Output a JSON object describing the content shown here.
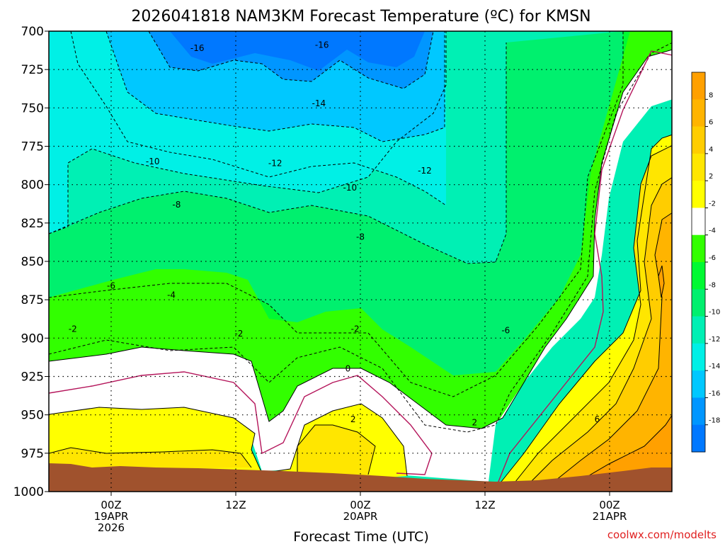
{
  "chart_data": {
    "type": "heatmap",
    "title": "2026041818 NAM3KM Forecast Temperature (ºC) for KMSN",
    "xlabel": "Forecast Time (UTC)",
    "ylabel": "",
    "y_ticks": [
      "700",
      "725",
      "750",
      "775",
      "800",
      "825",
      "850",
      "875",
      "900",
      "925",
      "950",
      "975",
      "1000"
    ],
    "x_ticks": [
      {
        "hour": 6,
        "lines": [
          "00Z",
          "19APR",
          "2026"
        ]
      },
      {
        "hour": 18,
        "lines": [
          "12Z",
          "",
          ""
        ]
      },
      {
        "hour": 30,
        "lines": [
          "00Z",
          "20APR",
          ""
        ]
      },
      {
        "hour": 42,
        "lines": [
          "12Z",
          "",
          ""
        ]
      },
      {
        "hour": 54,
        "lines": [
          "00Z",
          "21APR",
          ""
        ]
      }
    ],
    "x_range_hours": [
      0,
      60
    ],
    "y_range_hpa": [
      700,
      1000
    ],
    "credit": "coolwx.com/modelts",
    "colorbar": {
      "labels": [
        "8",
        "6",
        "4",
        "2",
        "-2",
        "-4",
        "-6",
        "-8",
        "-10",
        "-12",
        "-14",
        "-16",
        "-18"
      ],
      "colors": [
        "#ffa000",
        "#ffb400",
        "#ffcd00",
        "#ffe600",
        "#ffff00",
        "#ffffff",
        "#32ff00",
        "#00fa32",
        "#00f06e",
        "#00f0b4",
        "#00f0e6",
        "#00c8ff",
        "#0096ff",
        "#0078ff"
      ]
    },
    "contour_labels": [
      {
        "text": "-16",
        "hour": 14.3,
        "hpa": 711
      },
      {
        "text": "-16",
        "hour": 26.3,
        "hpa": 709
      },
      {
        "text": "-14",
        "hour": 26.0,
        "hpa": 747
      },
      {
        "text": "-12",
        "hour": 21.8,
        "hpa": 786
      },
      {
        "text": "-12",
        "hour": 36.2,
        "hpa": 791
      },
      {
        "text": "-10",
        "hour": 10.0,
        "hpa": 785
      },
      {
        "text": "-10",
        "hour": 29.0,
        "hpa": 802
      },
      {
        "text": "-8",
        "hour": 12.3,
        "hpa": 813
      },
      {
        "text": "-8",
        "hour": 30.0,
        "hpa": 834
      },
      {
        "text": "-6",
        "hour": 6.0,
        "hpa": 866
      },
      {
        "text": "-6",
        "hour": 44.0,
        "hpa": 895
      },
      {
        "text": "-4",
        "hour": 11.8,
        "hpa": 872
      },
      {
        "text": "-2",
        "hour": 2.3,
        "hpa": 894
      },
      {
        "text": "-2",
        "hour": 18.3,
        "hpa": 897
      },
      {
        "text": "-2",
        "hour": 29.5,
        "hpa": 894
      },
      {
        "text": "0",
        "hour": 28.8,
        "hpa": 920
      },
      {
        "text": "2",
        "hour": 29.3,
        "hpa": 953
      },
      {
        "text": "2",
        "hour": 41.0,
        "hpa": 955
      },
      {
        "text": "6",
        "hour": 52.8,
        "hpa": 953
      }
    ]
  }
}
